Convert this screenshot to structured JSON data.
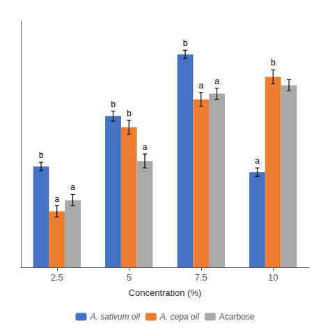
{
  "chart_data": {
    "type": "bar",
    "xlabel": "Concentration (%)",
    "categories": [
      "2.5",
      "5",
      "7.5",
      "10"
    ],
    "series": [
      {
        "name": "A. sativum oil",
        "color": "#4472C4",
        "values": [
          36,
          54,
          76,
          34
        ],
        "errors": [
          1.5,
          1.8,
          1.5,
          1.5
        ],
        "labels": [
          "b",
          "b",
          "b",
          "a"
        ]
      },
      {
        "name": "A. cepa oil",
        "color": "#ED7D31",
        "values": [
          20,
          50,
          60,
          68
        ],
        "errors": [
          2.0,
          2.5,
          2.5,
          2.5
        ],
        "labels": [
          "a",
          "b",
          "a",
          "b"
        ]
      },
      {
        "name": "Acarbose",
        "color": "#A9A9A9",
        "values": [
          24,
          38,
          62,
          65
        ],
        "errors": [
          2.0,
          2.5,
          2.0,
          2.0
        ],
        "labels": [
          "a",
          "a",
          "a",
          null
        ]
      }
    ],
    "ylim": [
      0,
      88
    ],
    "tick_labels": "x",
    "grid": false,
    "legend": "bottom"
  }
}
